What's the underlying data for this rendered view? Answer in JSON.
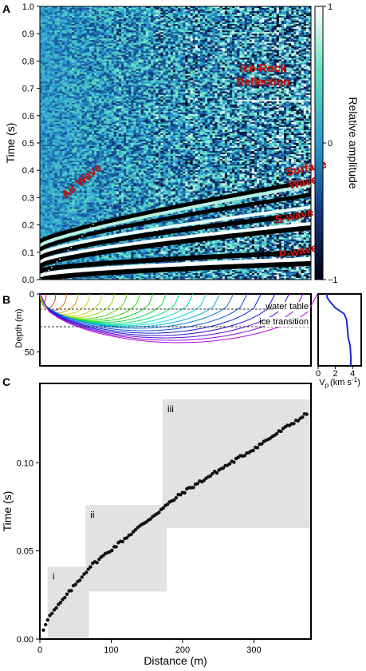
{
  "chart_data": [
    {
      "panel": "A",
      "type": "heatmap",
      "ylabel": "Time (s)",
      "ylim": [
        0,
        1.0
      ],
      "yticks": [
        "0.0",
        "0.1",
        "0.2",
        "0.3",
        "0.4",
        "0.5",
        "0.6",
        "0.7",
        "0.8",
        "0.9",
        "1.0"
      ],
      "colorbar": {
        "label": "Relative amplitude",
        "ticks": [
          "1",
          "0",
          "−1"
        ],
        "range": [
          -1,
          1
        ]
      },
      "annotations": [
        {
          "text": "Air Wave",
          "x": 55,
          "y": 0.35
        },
        {
          "text": "Ice-Rock",
          "x": 280,
          "y": 0.76
        },
        {
          "text": "Reflection",
          "x": 280,
          "y": 0.71
        },
        {
          "text": "Surface",
          "x": 335,
          "y": 0.395
        },
        {
          "text": "Waves",
          "x": 335,
          "y": 0.345
        },
        {
          "text": "S-wave",
          "x": 320,
          "y": 0.22
        },
        {
          "text": "P-wave",
          "x": 325,
          "y": 0.09
        }
      ],
      "grid": false
    },
    {
      "panel": "B",
      "type": "line",
      "ylabel": "Depth (m)",
      "ylim": [
        0,
        62
      ],
      "yticks": [
        "0",
        "50"
      ],
      "annotations": [
        {
          "text": "water table",
          "depth": 17
        },
        {
          "text": "ice transition",
          "depth": 30
        }
      ],
      "inset": {
        "type": "line",
        "xlabel": "V",
        "xlabel_sub": "p",
        "xlabel_unit": "(km s",
        "xlabel_sup": "-1",
        "xlabel_tail": ")",
        "xticks": [
          "0",
          "2",
          "4"
        ],
        "xlim": [
          0,
          5
        ],
        "profile_x": [
          1.0,
          1.05,
          1.3,
          2.0,
          3.0,
          3.3,
          3.4,
          3.5,
          3.7,
          3.8,
          3.8
        ],
        "profile_depth": [
          0,
          3,
          6,
          12,
          17,
          22,
          30,
          38,
          44,
          54,
          62
        ]
      }
    },
    {
      "panel": "C",
      "type": "scatter",
      "xlabel": "Distance (m)",
      "ylabel": "Time (s)",
      "xlim": [
        0,
        380
      ],
      "ylim": [
        0,
        0.145
      ],
      "xticks": [
        "0",
        "100",
        "200",
        "300"
      ],
      "yticks": [
        "0.00",
        "0.05",
        "0.10"
      ],
      "regions": [
        {
          "label": "i",
          "x": [
            11,
            69
          ],
          "y": [
            0.0,
            0.041
          ]
        },
        {
          "label": "ii",
          "x": [
            64,
            178
          ],
          "y": [
            0.027,
            0.076
          ]
        },
        {
          "label": "iii",
          "x": [
            172,
            380
          ],
          "y": [
            0.063,
            0.136
          ]
        }
      ],
      "points": {
        "x_start": 5,
        "x_end": 375,
        "step": 3,
        "y_at_x": [
          [
            0,
            0.0
          ],
          [
            10,
            0.011
          ],
          [
            70,
            0.041
          ],
          [
            150,
            0.067
          ],
          [
            200,
            0.083
          ],
          [
            300,
            0.108
          ],
          [
            375,
            0.128
          ]
        ]
      }
    }
  ],
  "panel_labels": {
    "a": "A",
    "b": "B",
    "c": "C"
  }
}
